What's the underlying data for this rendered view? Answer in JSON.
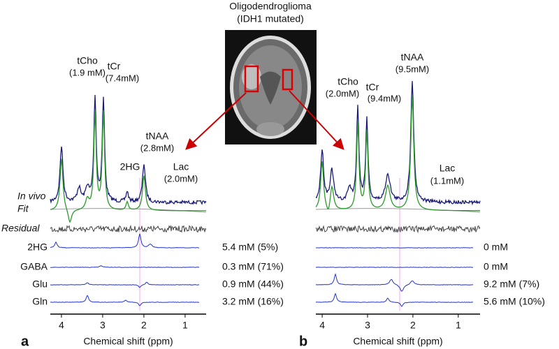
{
  "image": {
    "title": "Oligodendroglioma",
    "subtitle": "(IDH1 mutated)"
  },
  "row_labels": [
    "In vivo",
    "Fit",
    "Residual"
  ],
  "metabolites": [
    "2HG",
    "GABA",
    "Glu",
    "Gln"
  ],
  "panels": [
    {
      "label": "a",
      "peaks": [
        {
          "name": "tCho",
          "conc": "(1.9 mM)"
        },
        {
          "name": "tCr",
          "conc": "(7.4mM)"
        },
        {
          "name": "tNAA",
          "conc": "(2.8mM)"
        },
        {
          "name": "2HG"
        },
        {
          "name": "Lac",
          "conc": "(2.0mM)"
        }
      ],
      "quantities": [
        "5.4 mM (5%)",
        "0.3 mM (71%)",
        "0.9 mM (44%)",
        "3.2 mM (16%)"
      ],
      "xlabel": "Chemical shift (ppm)",
      "xlim": [
        4.27,
        0.49
      ],
      "xticks": [
        4,
        3,
        2,
        1
      ]
    },
    {
      "label": "b",
      "peaks": [
        {
          "name": "tCho",
          "conc": "(2.0mM)"
        },
        {
          "name": "tCr",
          "conc": "(9.4mM)"
        },
        {
          "name": "tNAA",
          "conc": "(9.5mM)"
        },
        {
          "name": "Lac",
          "conc": "(1.1mM)"
        }
      ],
      "quantities": [
        "0 mM",
        "0 mM",
        "9.2 mM (7%)",
        "5.6 mM (10%)"
      ],
      "xlabel": "Chemical shift (ppm)",
      "xlim": [
        4.14,
        0.52
      ],
      "xticks": [
        4,
        3,
        2,
        1
      ]
    }
  ]
}
